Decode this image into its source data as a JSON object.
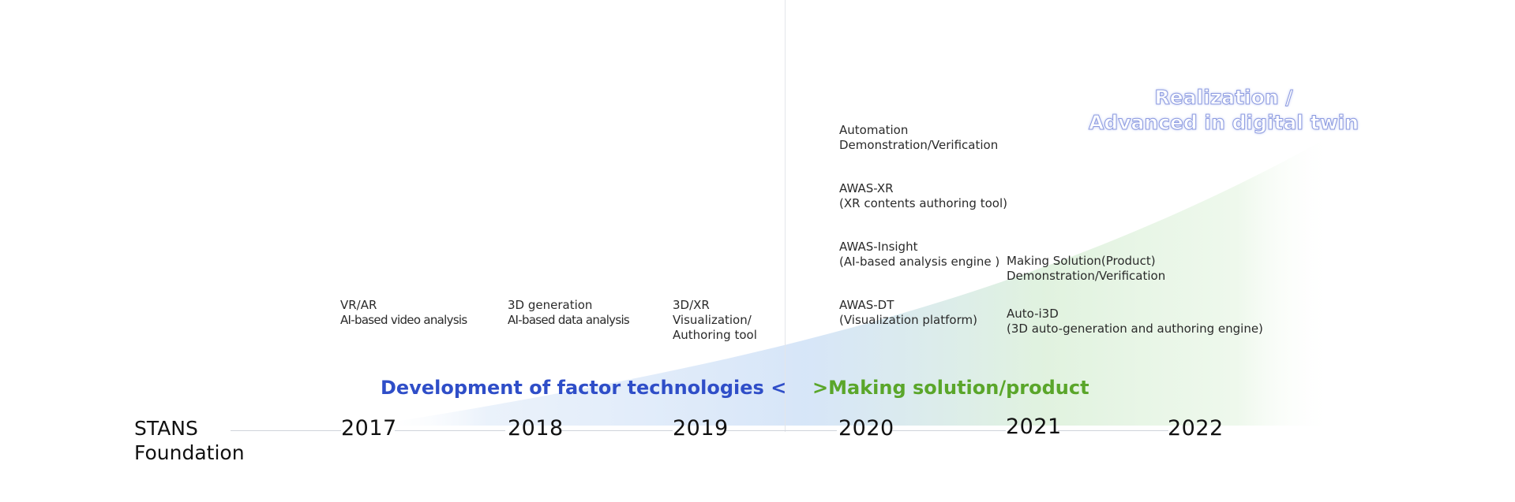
{
  "colors": {
    "phase_left": "#2f4ec8",
    "phase_right": "#5aa62a",
    "realization_fill": "#ffffff",
    "wedge_blue": "#c9ddf6",
    "wedge_green": "#d9efd7"
  },
  "timeline": {
    "start_label_lines": [
      "STANS",
      "Foundation"
    ],
    "years": [
      "2017",
      "2018",
      "2019",
      "2020",
      "2021",
      "2022"
    ]
  },
  "phases": {
    "left": "Development of  factor technologies <",
    "right": ">Making solution/product"
  },
  "realization_lines": [
    "Realization /",
    "Advanced in digital twin"
  ],
  "items": {
    "y2017": [
      "VR/AR",
      "AI-based video analysis"
    ],
    "y2018": [
      "3D generation",
      "AI-based data analysis"
    ],
    "y2019": [
      "3D/XR",
      "Visualization/",
      "Authoring tool"
    ],
    "y2020": [
      [
        "Automation",
        "Demonstration/Verification"
      ],
      [
        "AWAS-XR",
        "(XR contents  authoring tool)"
      ],
      [
        "AWAS-Insight",
        "(AI-based analysis engine )"
      ],
      [
        "AWAS-DT",
        "(Visualization platform)"
      ]
    ],
    "y2021": [
      [
        "Making Solution(Product)",
        "Demonstration/Verification"
      ],
      [
        "Auto-i3D",
        "(3D auto-generation and authoring engine)"
      ]
    ]
  }
}
